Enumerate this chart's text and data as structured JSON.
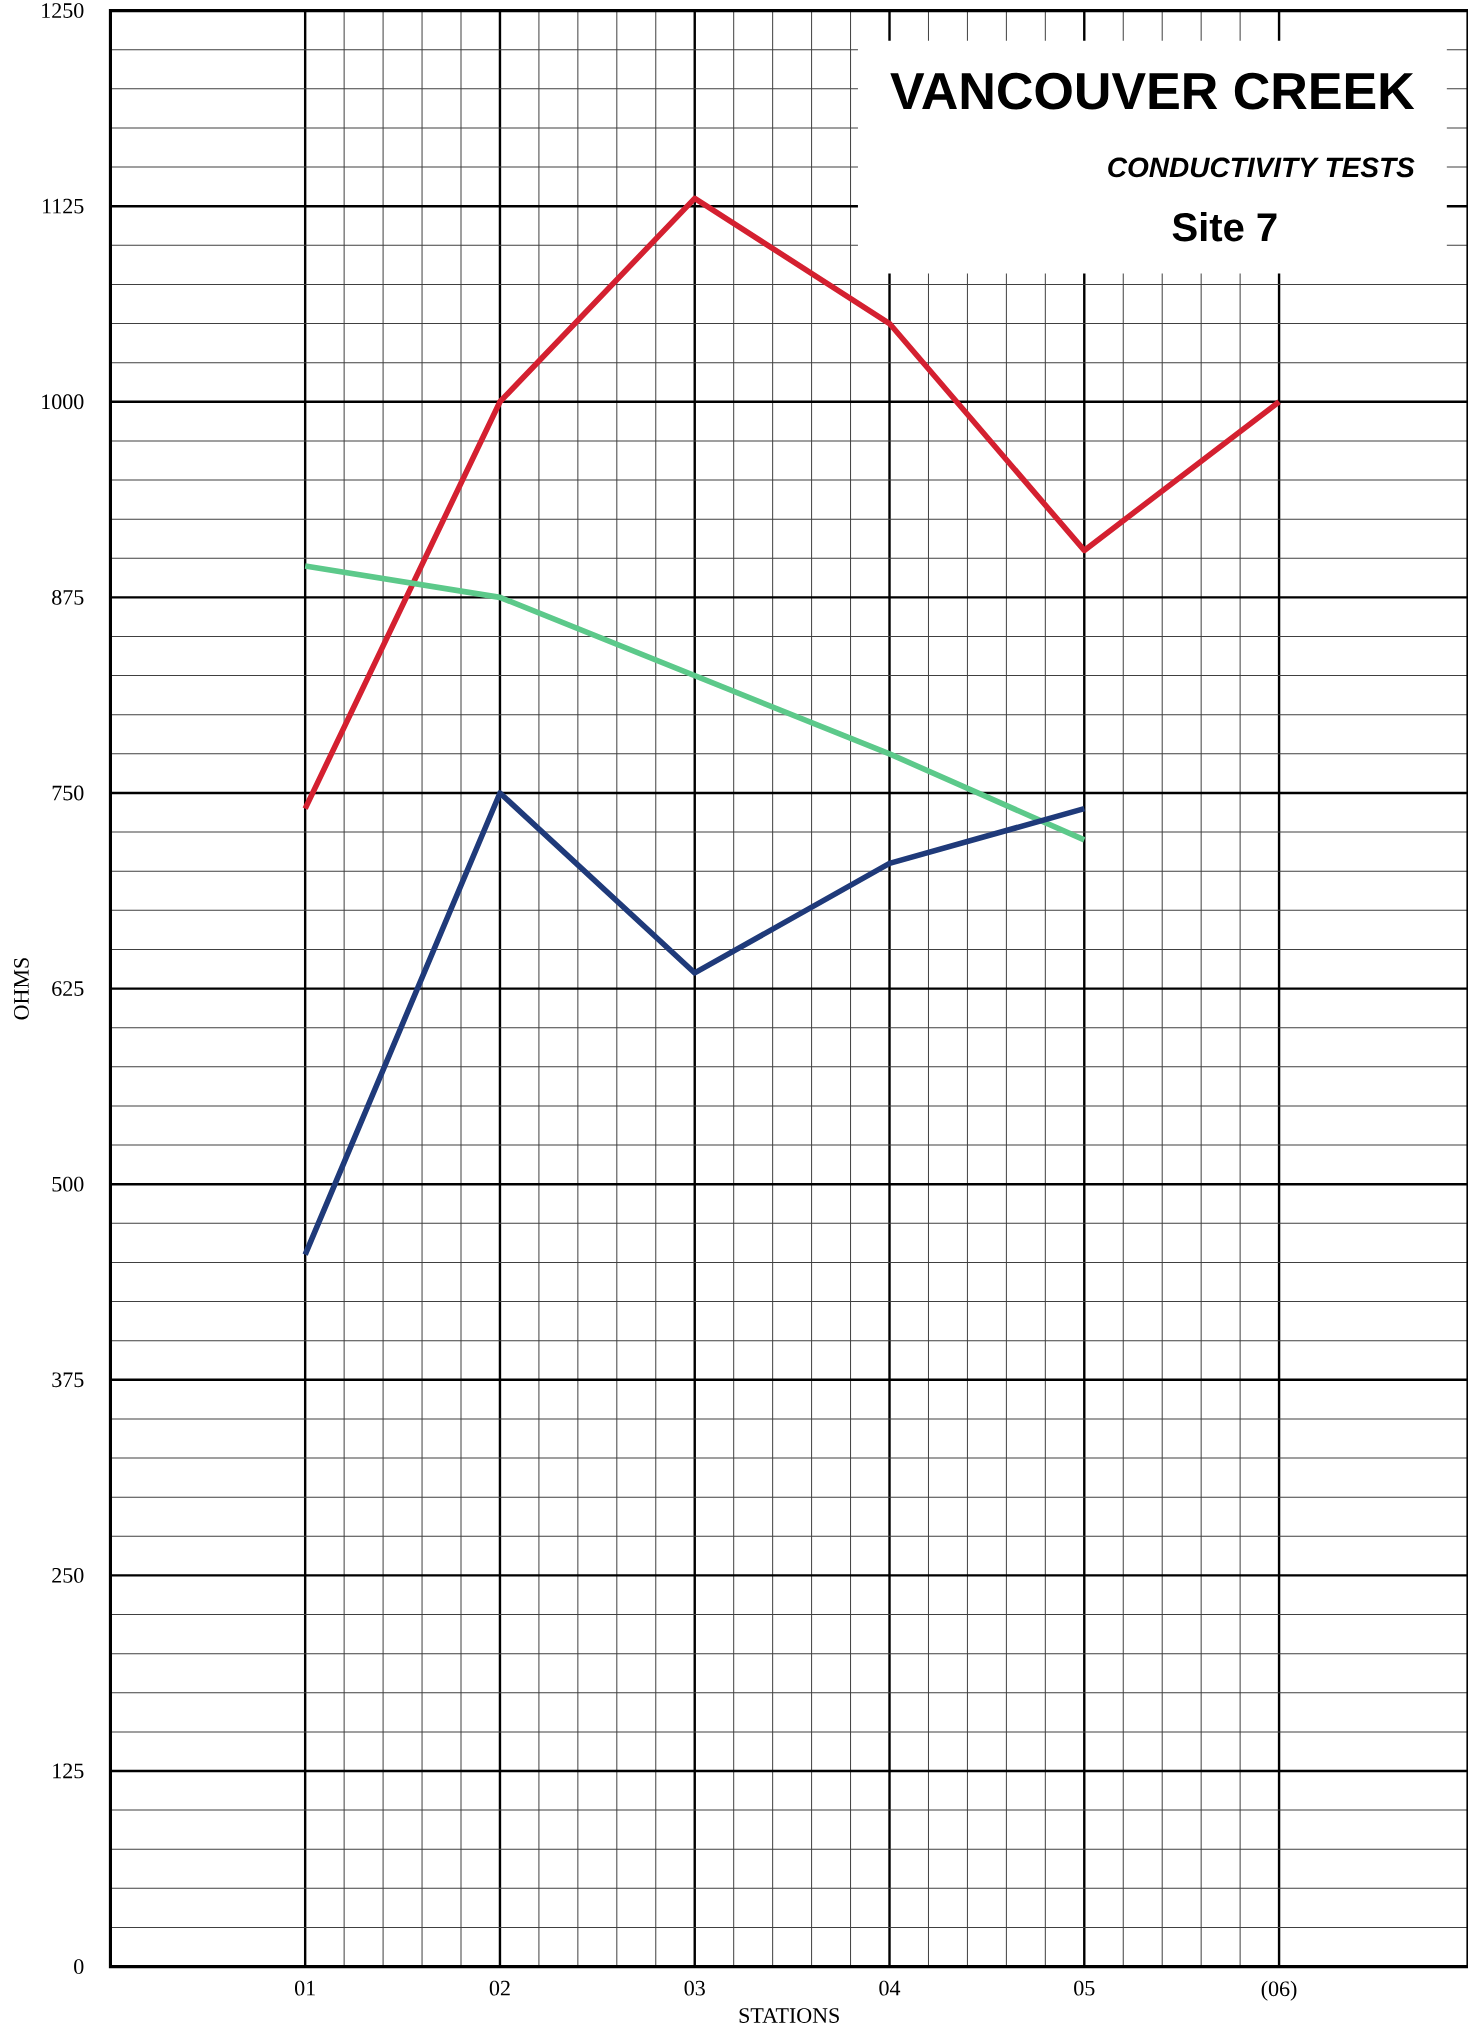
{
  "chart_data": {
    "type": "line",
    "title": "VANCOUVER CREEK",
    "subtitle": "CONDUCTIVITY TESTS",
    "annotations": [
      "Site 7"
    ],
    "xlabel": "STATIONS",
    "ylabel": "OHMS",
    "categories": [
      "01",
      "02",
      "03",
      "04",
      "05",
      "(06)"
    ],
    "series": [
      {
        "color": "#d42030",
        "values": [
          740,
          1000,
          1130,
          1050,
          905,
          1000
        ]
      },
      {
        "color": "#5cc98a",
        "values": [
          895,
          875,
          825,
          775,
          720,
          null
        ]
      },
      {
        "color": "#1f3a7a",
        "values": [
          455,
          750,
          635,
          705,
          740,
          null
        ]
      }
    ],
    "ylim": [
      0,
      1250
    ],
    "yticks": [
      0,
      125,
      250,
      375,
      500,
      625,
      750,
      875,
      1000,
      1125,
      1250
    ],
    "grid": true
  }
}
